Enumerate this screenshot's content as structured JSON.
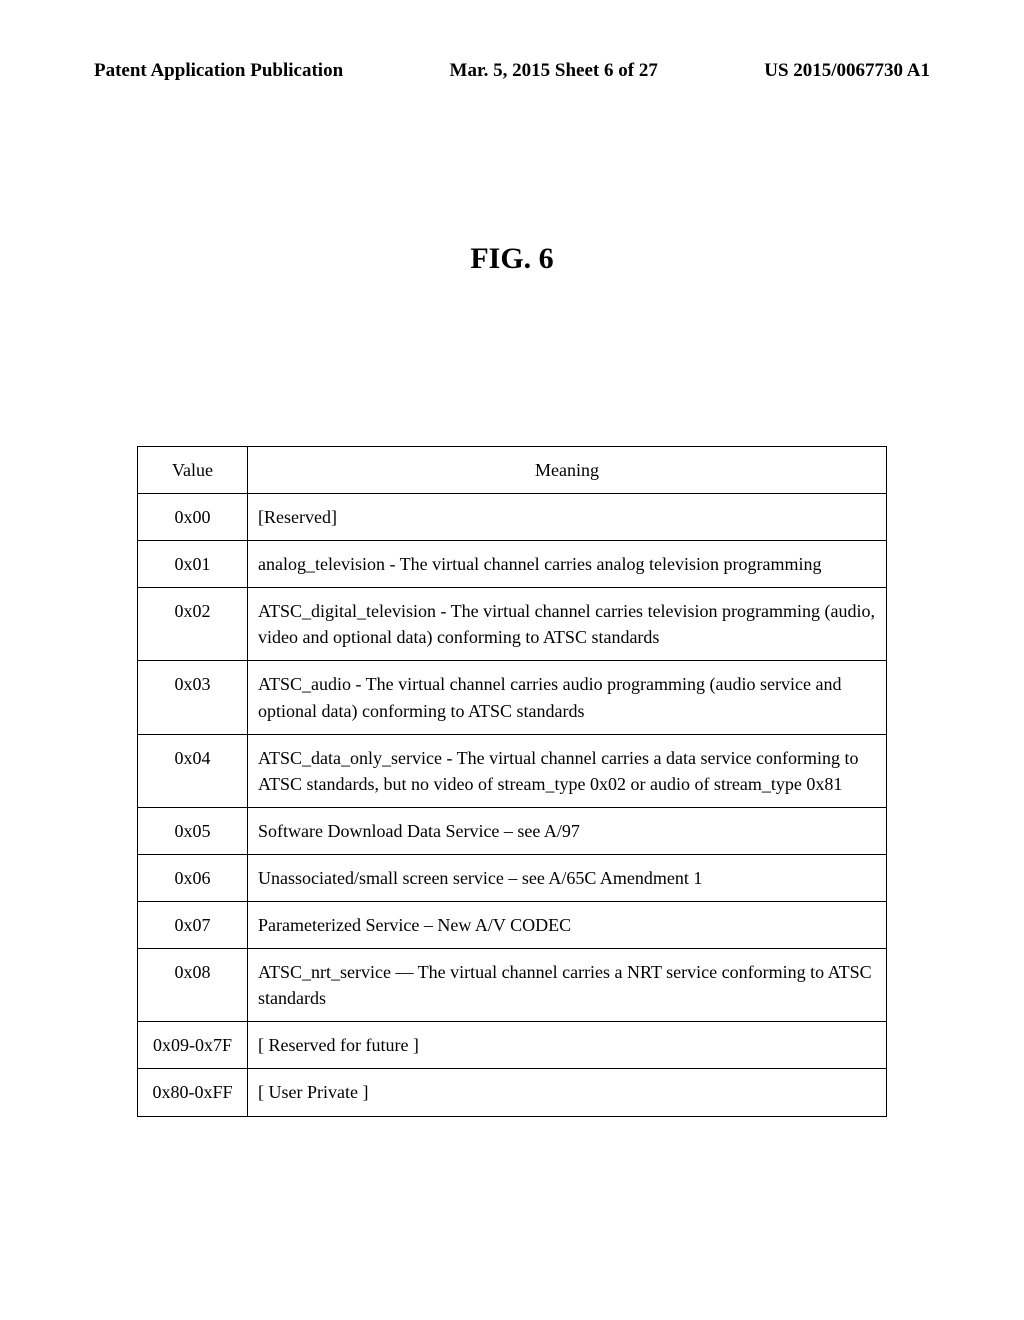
{
  "header": {
    "left": "Patent Application Publication",
    "center": "Mar. 5, 2015   Sheet 6 of 27",
    "right": "US 2015/0067730 A1"
  },
  "figure": {
    "title": "FIG.  6"
  },
  "table": {
    "columns": [
      "Value",
      "Meaning"
    ],
    "rows": [
      [
        "0x00",
        "[Reserved]"
      ],
      [
        "0x01",
        "analog_television - The virtual channel carries analog television programming"
      ],
      [
        "0x02",
        "ATSC_digital_television - The virtual channel carries television programming (audio, video and optional data) conforming to ATSC standards"
      ],
      [
        "0x03",
        "ATSC_audio - The virtual channel carries audio programming (audio service and optional data) conforming to ATSC standards"
      ],
      [
        "0x04",
        "ATSC_data_only_service - The virtual channel carries a data service conforming to ATSC standards, but no video of stream_type 0x02 or audio of stream_type 0x81"
      ],
      [
        "0x05",
        "Software Download Data Service – see A/97"
      ],
      [
        "0x06",
        "Unassociated/small screen service – see A/65C Amendment 1"
      ],
      [
        "0x07",
        "Parameterized Service – New A/V CODEC"
      ],
      [
        "0x08",
        "ATSC_nrt_service — The virtual channel carries a NRT service conforming to ATSC standards"
      ],
      [
        "0x09-0x7F",
        "[ Reserved for future ]"
      ],
      [
        "0x80-0xFF",
        "[ User Private ]"
      ]
    ]
  }
}
